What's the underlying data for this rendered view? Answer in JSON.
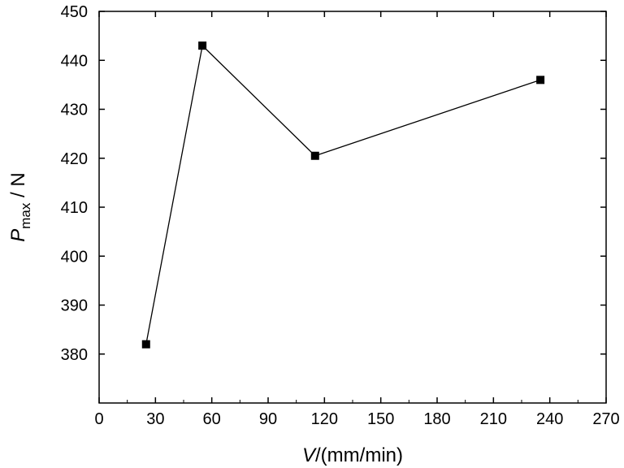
{
  "chart_data": {
    "type": "line",
    "title": "",
    "xlabel": {
      "italic": "V",
      "rest": "/(mm/min)"
    },
    "ylabel": {
      "italic": "P",
      "sub": "max",
      "rest": " / N"
    },
    "xlim": [
      0,
      270
    ],
    "ylim": [
      370,
      450
    ],
    "xticks": [
      0,
      30,
      60,
      90,
      120,
      150,
      180,
      210,
      240,
      270
    ],
    "yticks": [
      380,
      390,
      400,
      410,
      420,
      430,
      440,
      450
    ],
    "grid": false,
    "legend": "none",
    "series": [
      {
        "x": [
          25,
          55,
          115,
          235
        ],
        "y": [
          382,
          443,
          420.5,
          436
        ],
        "marker": "square",
        "color": "#000000"
      }
    ]
  }
}
